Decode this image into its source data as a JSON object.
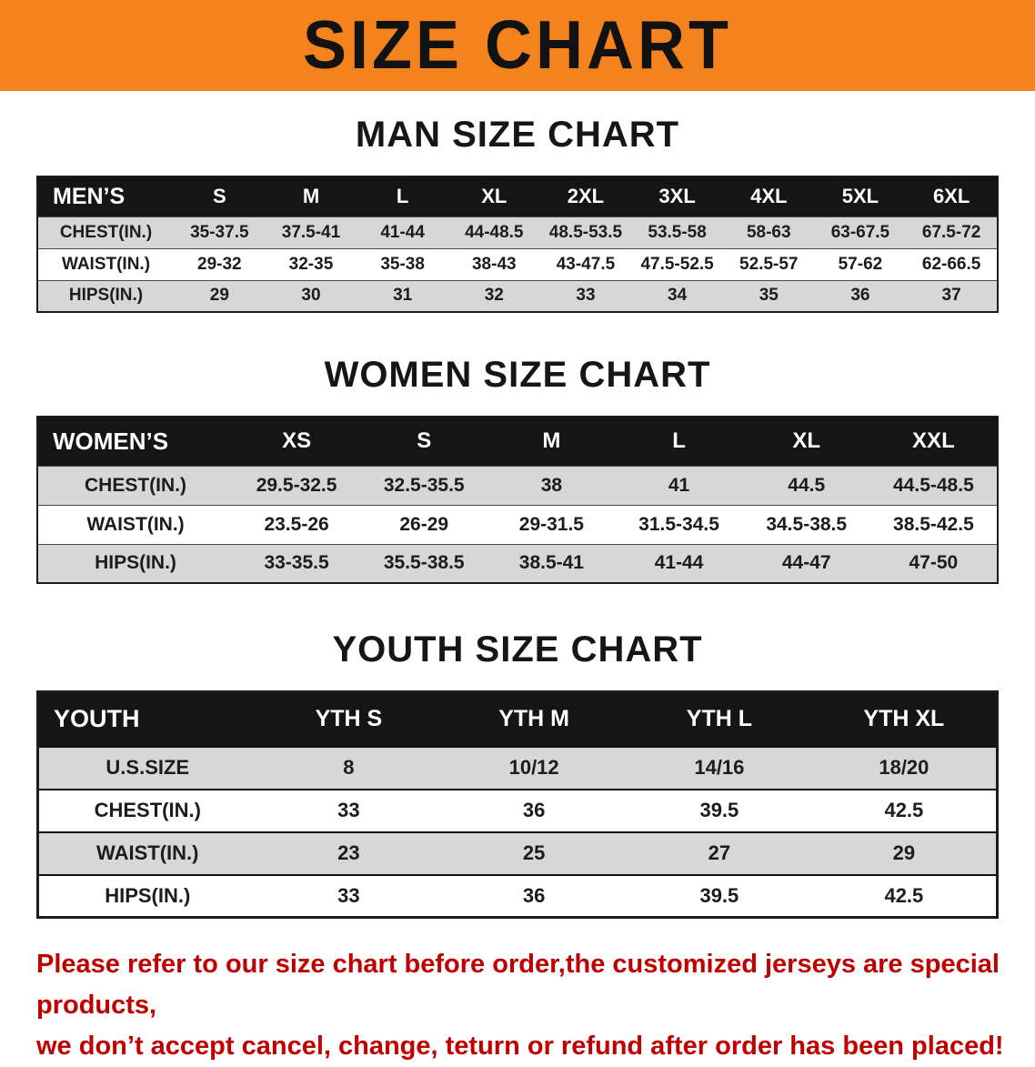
{
  "banner": {
    "title": "SIZE CHART"
  },
  "sections": {
    "men": {
      "heading": "MAN SIZE CHART",
      "table": {
        "header": [
          "MEN’S",
          "S",
          "M",
          "L",
          "XL",
          "2XL",
          "3XL",
          "4XL",
          "5XL",
          "6XL"
        ],
        "rows": [
          {
            "label": "CHEST(IN.)",
            "values": [
              "35-37.5",
              "37.5-41",
              "41-44",
              "44-48.5",
              "48.5-53.5",
              "53.5-58",
              "58-63",
              "63-67.5",
              "67.5-72"
            ]
          },
          {
            "label": "WAIST(IN.)",
            "values": [
              "29-32",
              "32-35",
              "35-38",
              "38-43",
              "43-47.5",
              "47.5-52.5",
              "52.5-57",
              "57-62",
              "62-66.5"
            ]
          },
          {
            "label": "HIPS(IN.)",
            "values": [
              "29",
              "30",
              "31",
              "32",
              "33",
              "34",
              "35",
              "36",
              "37"
            ]
          }
        ]
      }
    },
    "women": {
      "heading": "WOMEN SIZE CHART",
      "table": {
        "header": [
          "WOMEN’S",
          "XS",
          "S",
          "M",
          "L",
          "XL",
          "XXL"
        ],
        "rows": [
          {
            "label": "CHEST(IN.)",
            "values": [
              "29.5-32.5",
              "32.5-35.5",
              "38",
              "41",
              "44.5",
              "44.5-48.5"
            ]
          },
          {
            "label": "WAIST(IN.)",
            "values": [
              "23.5-26",
              "26-29",
              "29-31.5",
              "31.5-34.5",
              "34.5-38.5",
              "38.5-42.5"
            ]
          },
          {
            "label": "HIPS(IN.)",
            "values": [
              "33-35.5",
              "35.5-38.5",
              "38.5-41",
              "41-44",
              "44-47",
              "47-50"
            ]
          }
        ]
      }
    },
    "youth": {
      "heading": "YOUTH SIZE CHART",
      "table": {
        "header": [
          "YOUTH",
          "YTH S",
          "YTH M",
          "YTH L",
          "YTH XL"
        ],
        "rows": [
          {
            "label": "U.S.SIZE",
            "values": [
              "8",
              "10/12",
              "14/16",
              "18/20"
            ]
          },
          {
            "label": "CHEST(IN.)",
            "values": [
              "33",
              "36",
              "39.5",
              "42.5"
            ]
          },
          {
            "label": "WAIST(IN.)",
            "values": [
              "23",
              "25",
              "27",
              "29"
            ]
          },
          {
            "label": "HIPS(IN.)",
            "values": [
              "33",
              "36",
              "39.5",
              "42.5"
            ]
          }
        ]
      }
    }
  },
  "disclaimer": {
    "line1": "Please refer to our size chart before order,the customized jerseys are special products,",
    "line2": "we don’t accept cancel, change, teturn or refund after order has been placed!"
  },
  "colors": {
    "banner_orange": "#f5831d",
    "header_black": "#151515",
    "row_gray": "#d7d7d7",
    "disclaimer_red": "#c00000"
  }
}
